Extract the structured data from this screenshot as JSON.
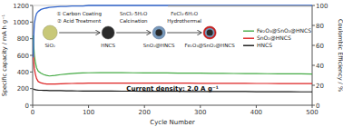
{
  "chart_data": {
    "type": "line",
    "title": "Current density: 2.0 A g⁻¹",
    "xlabel": "Cycle Number",
    "ylabel": "Specific capacity / mA h g⁻¹",
    "y2label": "Coulombic Efficiency / %",
    "xlim": [
      0,
      500
    ],
    "xticks": [
      0,
      100,
      200,
      300,
      400,
      500
    ],
    "ylim": [
      0,
      1200
    ],
    "yticks": [
      0,
      200,
      400,
      600,
      800,
      1000,
      1200
    ],
    "y2lim": [
      0,
      100
    ],
    "y2ticks": [
      0,
      20,
      40,
      60,
      80,
      100
    ],
    "grid": false,
    "legend": "upper right",
    "series": [
      {
        "name": "Fe₂O₃@SnO₂@HNCS",
        "color": "#44aa44",
        "x": [
          1,
          2,
          3,
          5,
          7,
          10,
          15,
          20,
          25,
          30,
          40,
          50,
          60,
          70,
          80,
          90,
          100,
          120,
          140,
          160,
          180,
          200,
          220,
          240,
          260,
          280,
          300,
          320,
          340,
          360,
          380,
          400,
          420,
          440,
          460,
          480,
          500
        ],
        "values": [
          840,
          710,
          600,
          510,
          450,
          410,
          385,
          368,
          358,
          352,
          358,
          368,
          375,
          380,
          385,
          388,
          390,
          392,
          392,
          391,
          390,
          389,
          388,
          388,
          387,
          386,
          385,
          384,
          383,
          382,
          381,
          380,
          379,
          378,
          378,
          377,
          376
        ]
      },
      {
        "name": "SnO₂@HNCS",
        "color": "#dd2222",
        "x": [
          1,
          2,
          3,
          5,
          7,
          10,
          15,
          20,
          25,
          30,
          40,
          50,
          60,
          70,
          80,
          90,
          100,
          120,
          140,
          160,
          180,
          200,
          220,
          240,
          260,
          280,
          300,
          320,
          340,
          360,
          380,
          400,
          420,
          440,
          460,
          480,
          500
        ],
        "values": [
          625,
          520,
          440,
          370,
          320,
          285,
          268,
          260,
          256,
          254,
          255,
          257,
          260,
          262,
          263,
          264,
          265,
          266,
          267,
          267,
          267,
          266,
          266,
          266,
          265,
          265,
          264,
          264,
          264,
          263,
          263,
          262,
          262,
          261,
          261,
          260,
          260
        ]
      },
      {
        "name": "HNCS",
        "color": "#111111",
        "x": [
          1,
          2,
          3,
          5,
          7,
          10,
          15,
          20,
          25,
          30,
          40,
          50,
          60,
          70,
          80,
          90,
          100,
          120,
          140,
          160,
          180,
          200,
          220,
          240,
          260,
          280,
          300,
          320,
          340,
          360,
          380,
          400,
          420,
          440,
          460,
          480,
          500
        ],
        "values": [
          198,
          193,
          190,
          187,
          184,
          182,
          180,
          179,
          178,
          177,
          176,
          175,
          174,
          173,
          172,
          171,
          171,
          170,
          170,
          169,
          169,
          168,
          168,
          167,
          167,
          166,
          166,
          165,
          165,
          164,
          164,
          163,
          163,
          162,
          162,
          161,
          161
        ]
      },
      {
        "color": "#3366cc",
        "axis": "y2",
        "x": [
          1,
          2,
          3,
          5,
          7,
          10,
          15,
          20,
          25,
          30,
          40,
          50,
          60,
          70,
          80,
          90,
          100,
          120,
          140,
          160,
          180,
          200,
          220,
          240,
          260,
          280,
          300,
          320,
          340,
          360,
          380,
          400,
          420,
          440,
          460,
          480,
          500
        ],
        "values": [
          48,
          70,
          82,
          88,
          92,
          94,
          96,
          97,
          97.5,
          98,
          98.5,
          99,
          99,
          99.5,
          99.5,
          99.5,
          100,
          100,
          100,
          100,
          100,
          100,
          100,
          100,
          100,
          100,
          100,
          100,
          100,
          100,
          100,
          100,
          100,
          100,
          100,
          100,
          100
        ]
      },
      {
        "color": "#999999",
        "axis": "y2",
        "x": [
          242,
          498
        ],
        "values": [
          99.5,
          99.5
        ]
      }
    ],
    "annotations": [
      "SiO₂",
      "① Carbon Coating",
      "② Acid Treatment",
      "HNCS",
      "SnCl₂·5H₂O",
      "Calcination",
      "SnO₂@HNCS",
      "FeCl₃·6H₂O",
      "Hydrothermal",
      "Fe₂O₃@SnO₂@HNCS"
    ]
  }
}
